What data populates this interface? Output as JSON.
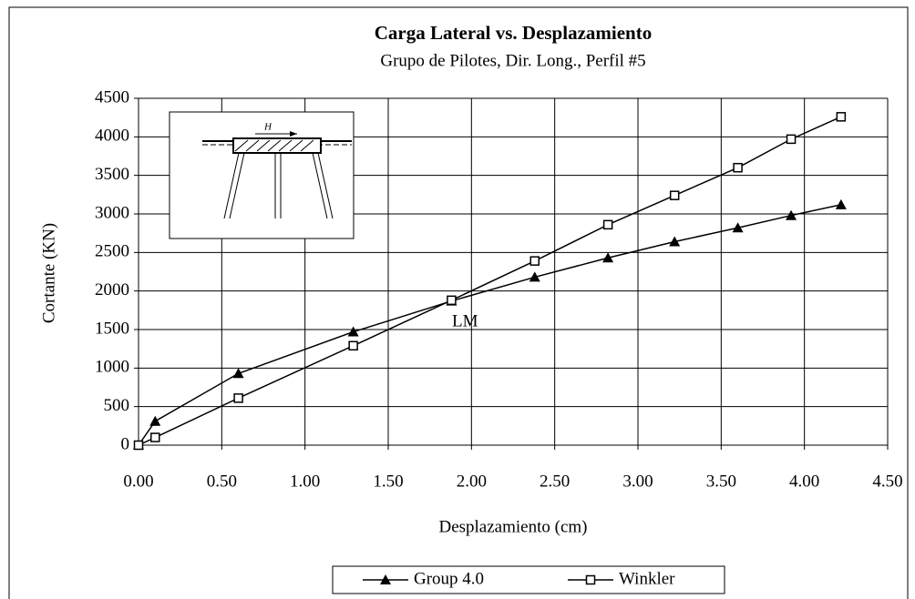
{
  "chart_data": {
    "type": "line",
    "title": "Carga Lateral vs. Desplazamiento",
    "subtitle": "Grupo de Pilotes, Dir. Long., Perfil #5",
    "x_label": "Desplazamiento (cm)",
    "y_label": "Cortante (KN)",
    "annotation": "LM",
    "inset_label": "H",
    "xlim": [
      0,
      4.5
    ],
    "ylim": [
      0,
      4500
    ],
    "xticks": [
      {
        "value": 0,
        "label": "0.00"
      },
      {
        "value": 0.5,
        "label": "0.50"
      },
      {
        "value": 1,
        "label": "1.00"
      },
      {
        "value": 1.5,
        "label": "1.50"
      },
      {
        "value": 2,
        "label": "2.00"
      },
      {
        "value": 2.5,
        "label": "2.50"
      },
      {
        "value": 3,
        "label": "3.00"
      },
      {
        "value": 3.5,
        "label": "3.50"
      },
      {
        "value": 4,
        "label": "4.00"
      },
      {
        "value": 4.5,
        "label": "4.50"
      }
    ],
    "yticks": [
      0,
      500,
      1000,
      1500,
      2000,
      2500,
      3000,
      3500,
      4000,
      4500
    ],
    "grid": true,
    "legend": "bottom",
    "series": [
      {
        "name": "Group 4.0",
        "color": "#000000",
        "marker": "triangle",
        "x": [
          0,
          0.1,
          0.6,
          1.29,
          1.88,
          2.38,
          2.82,
          3.22,
          3.6,
          3.92,
          4.22
        ],
        "values": [
          0,
          310,
          930,
          1470,
          1870,
          2180,
          2430,
          2640,
          2820,
          2980,
          3120
        ]
      },
      {
        "name": "Winkler",
        "color": "#000000",
        "marker": "square",
        "x": [
          0,
          0.1,
          0.6,
          1.29,
          1.88,
          2.38,
          2.82,
          3.22,
          3.6,
          3.92,
          4.22
        ],
        "values": [
          0,
          100,
          610,
          1290,
          1880,
          2390,
          2860,
          3240,
          3600,
          3970,
          4260
        ]
      }
    ]
  }
}
